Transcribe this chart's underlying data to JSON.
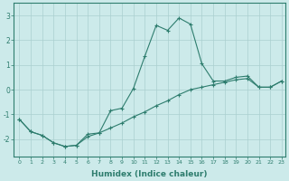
{
  "xlabel": "Humidex (Indice chaleur)",
  "ylabel": "",
  "bg_color": "#cceaea",
  "grid_color": "#aacfcf",
  "line_color": "#2e7d6e",
  "marker_color": "#2e7d6e",
  "xlim": [
    -0.5,
    23.3
  ],
  "ylim": [
    -2.7,
    3.5
  ],
  "yticks": [
    -2,
    -1,
    0,
    1,
    2,
    3
  ],
  "xticks": [
    0,
    1,
    2,
    3,
    4,
    5,
    6,
    7,
    8,
    9,
    10,
    11,
    12,
    13,
    14,
    15,
    16,
    17,
    18,
    19,
    20,
    21,
    22,
    23
  ],
  "series1_x": [
    0,
    1,
    2,
    3,
    4,
    5,
    6,
    7,
    8,
    9,
    10,
    11,
    12,
    13,
    14,
    15,
    16,
    17,
    18,
    19,
    20,
    21,
    22,
    23
  ],
  "series1_y": [
    -1.2,
    -1.7,
    -1.85,
    -2.15,
    -2.3,
    -2.25,
    -1.8,
    -1.75,
    -0.85,
    -0.75,
    0.05,
    1.35,
    2.6,
    2.4,
    2.9,
    2.65,
    1.05,
    0.35,
    0.35,
    0.5,
    0.55,
    0.1,
    0.1,
    0.35
  ],
  "series2_x": [
    0,
    1,
    2,
    3,
    4,
    5,
    6,
    7,
    8,
    9,
    10,
    11,
    12,
    13,
    14,
    15,
    16,
    17,
    18,
    19,
    20,
    21,
    22,
    23
  ],
  "series2_y": [
    -1.2,
    -1.7,
    -1.85,
    -2.15,
    -2.3,
    -2.25,
    -1.9,
    -1.75,
    -1.55,
    -1.35,
    -1.1,
    -0.9,
    -0.65,
    -0.45,
    -0.2,
    0.0,
    0.1,
    0.2,
    0.3,
    0.4,
    0.45,
    0.1,
    0.1,
    0.35
  ]
}
